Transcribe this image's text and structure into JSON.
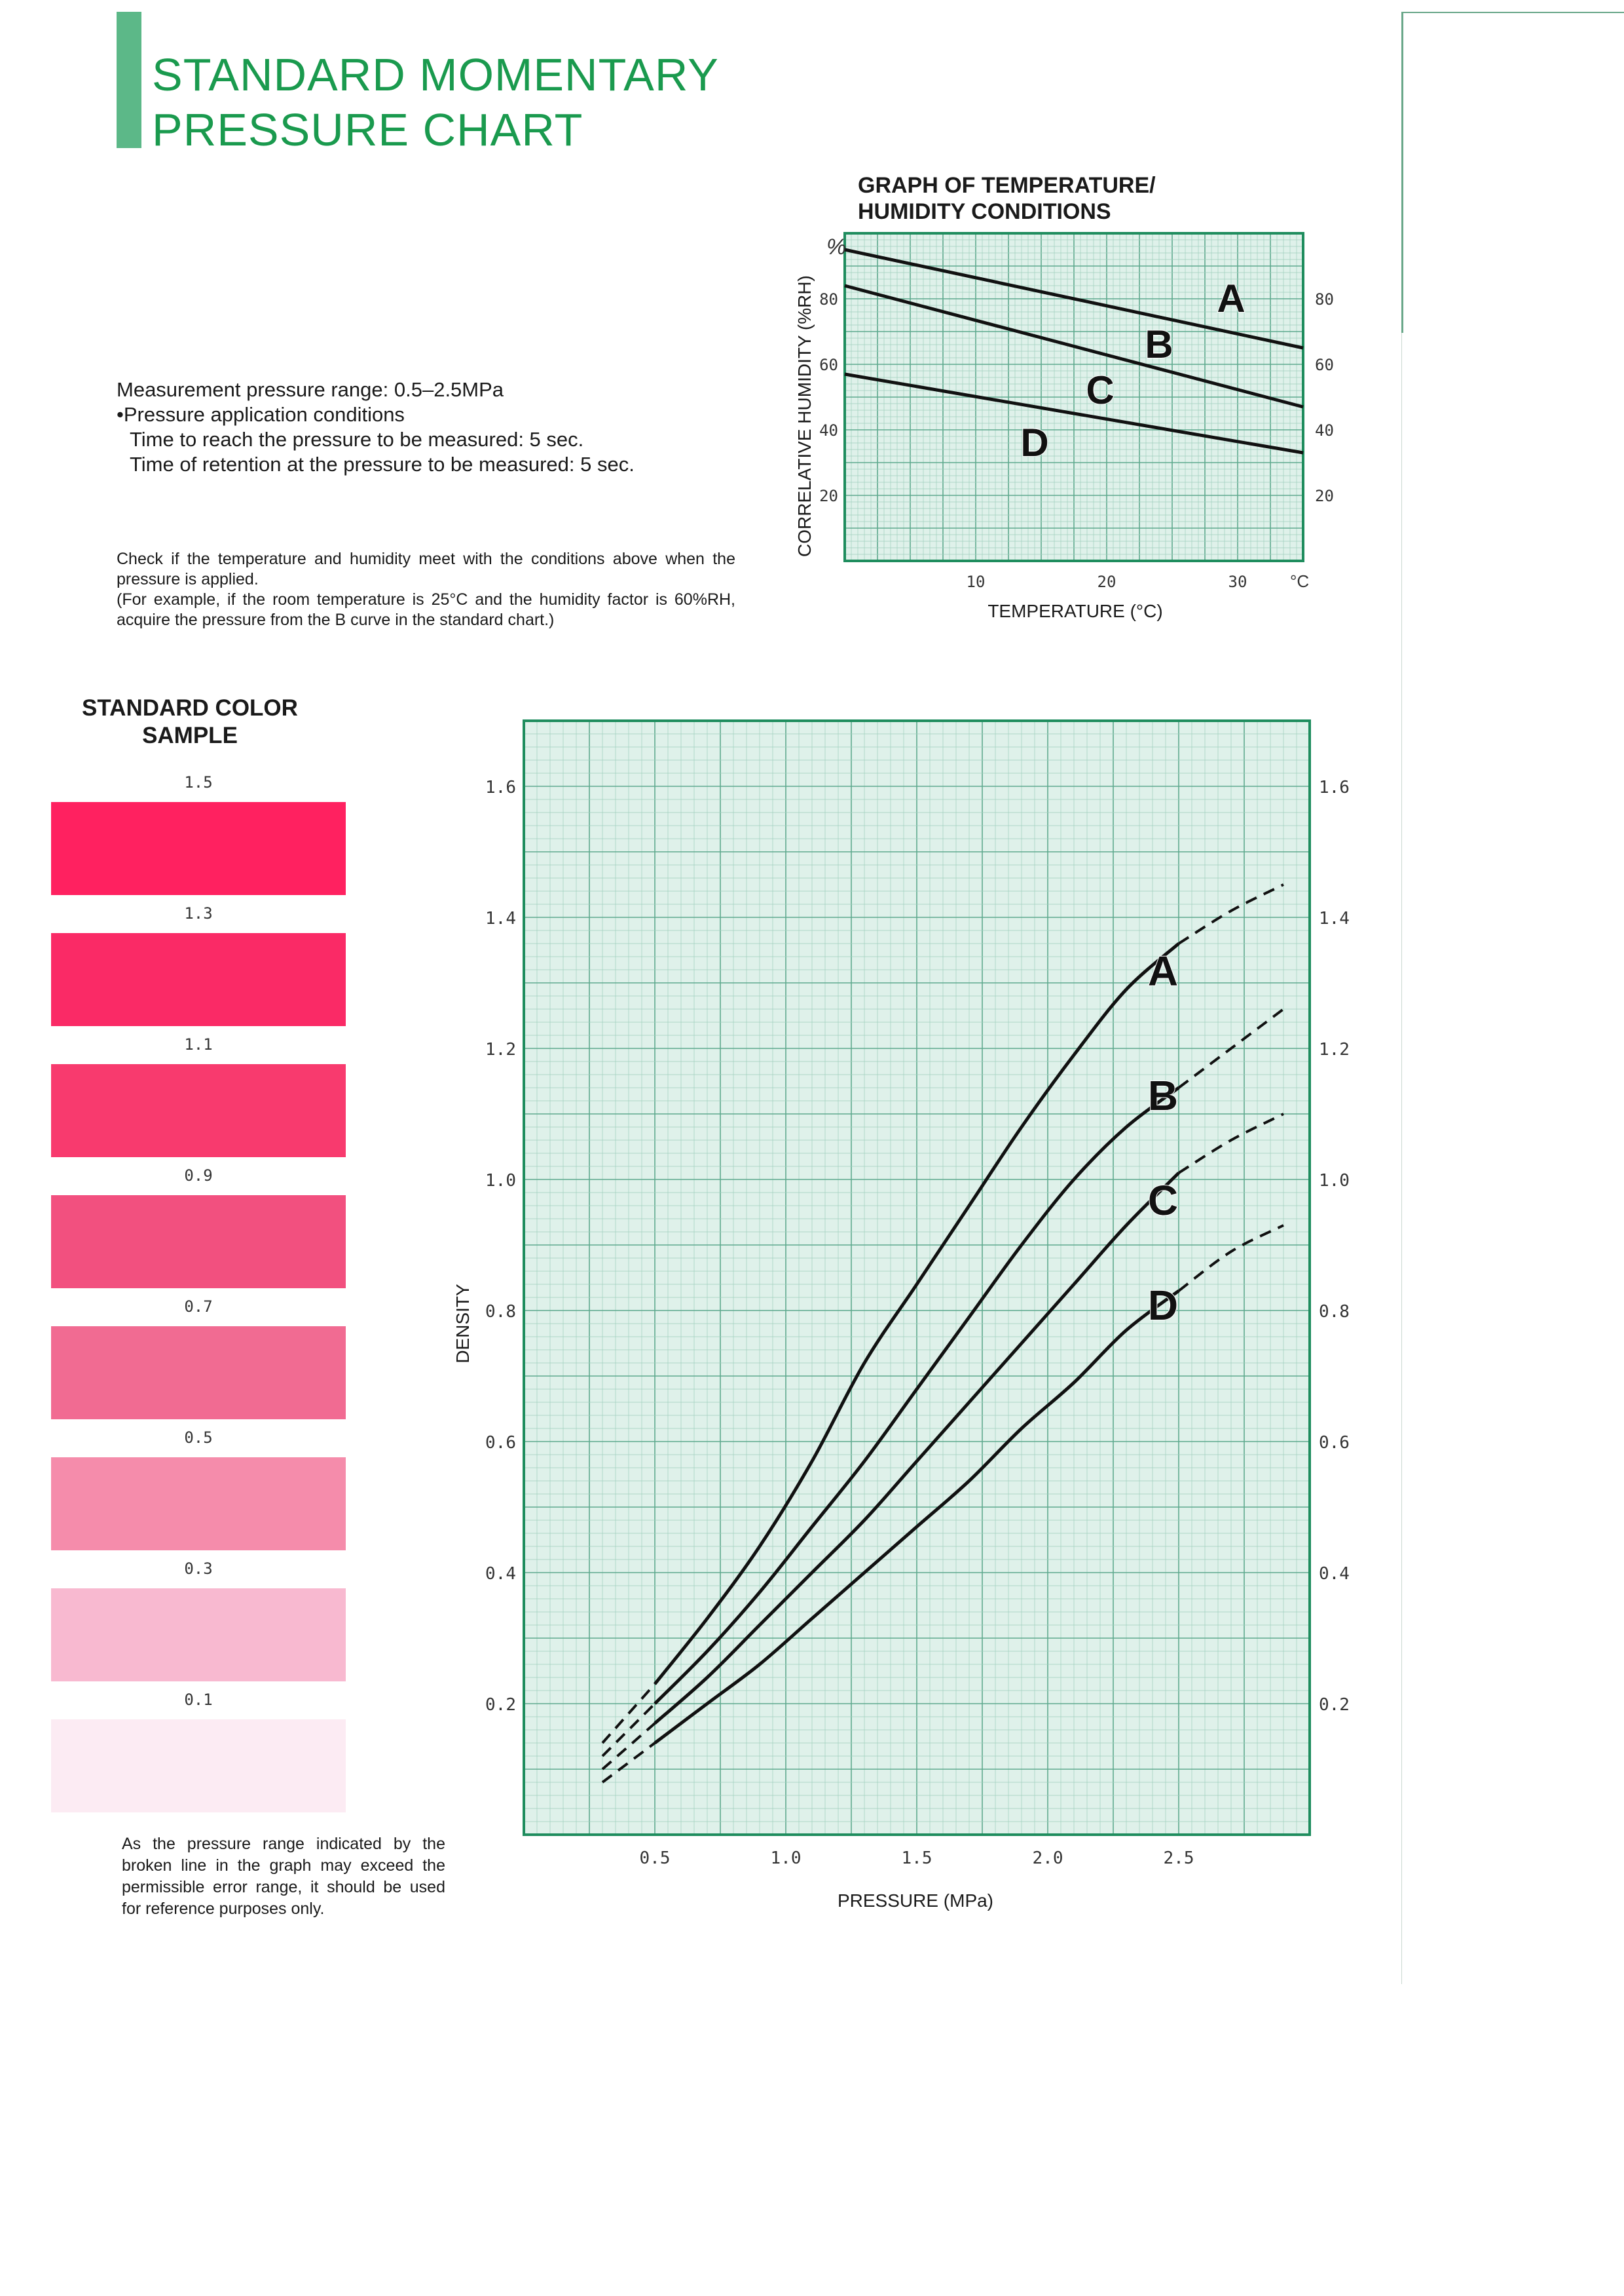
{
  "page": {
    "title_lines": [
      "STANDARD MOMENTARY",
      "PRESSURE CHART"
    ],
    "conditions": {
      "range": "Measurement pressure range: 0.5–2.5MPa",
      "application": "•Pressure application conditions",
      "time_reach": "Time to reach the pressure to be measured: 5 sec.",
      "time_retention": "Time of retention at the pressure to be measured: 5 sec."
    },
    "note_lines": [
      "Check if the temperature and humidity meet with the conditions above when the pressure is applied.",
      "(For example, if the room temperature is 25°C and the humidity factor is 60%RH, acquire the pressure from the B curve in the standard chart.)"
    ],
    "color_sample": {
      "title_lines": [
        "STANDARD COLOR",
        "SAMPLE"
      ],
      "swatches": [
        {
          "label": "1.5",
          "color": "#ff2160"
        },
        {
          "label": "1.3",
          "color": "#fa2a66"
        },
        {
          "label": "1.1",
          "color": "#f83a6e"
        },
        {
          "label": "0.9",
          "color": "#f2507f"
        },
        {
          "label": "0.7",
          "color": "#f16b92"
        },
        {
          "label": "0.5",
          "color": "#f58cab"
        },
        {
          "label": "0.3",
          "color": "#f8b9d0"
        },
        {
          "label": "0.1",
          "color": "#fcebf3"
        }
      ]
    },
    "footnote": "As the pressure range indicated by the broken line in the graph may exceed the permissible error range, it should be used for reference purposes only."
  },
  "colors": {
    "title_green": "#1a9a4e",
    "accent_bar": "#5cb888",
    "grid_bg": "#dff1ea",
    "grid_fine": "#9fcfbd",
    "grid_major": "#5ea98e",
    "frame": "#1f8d5e"
  },
  "chart_data": [
    {
      "type": "line",
      "title_lines": [
        "GRAPH OF TEMPERATURE/",
        "HUMIDITY CONDITIONS"
      ],
      "xlabel": "TEMPERATURE (°C)",
      "ylabel": "CORRELATIVE HUMIDITY (%RH)",
      "y_unit": "%",
      "x_unit": "°C",
      "xlim": [
        0,
        35
      ],
      "ylim": [
        0,
        100
      ],
      "x_ticks": [
        {
          "value": 10,
          "label": "10"
        },
        {
          "value": 20,
          "label": "20"
        },
        {
          "value": 30,
          "label": "30"
        }
      ],
      "y_ticks_left": [
        {
          "value": 20,
          "label": "20"
        },
        {
          "value": 40,
          "label": "40"
        },
        {
          "value": 60,
          "label": "60"
        },
        {
          "value": 80,
          "label": "80"
        }
      ],
      "y_ticks_right": [
        {
          "value": 20,
          "label": "20"
        },
        {
          "value": 40,
          "label": "40"
        },
        {
          "value": 60,
          "label": "60"
        },
        {
          "value": 80,
          "label": "80"
        }
      ],
      "series": [
        {
          "name": "A",
          "x": [
            0,
            35
          ],
          "y": [
            95,
            65
          ],
          "label_at": [
            29.5,
            80
          ]
        },
        {
          "name": "B",
          "x": [
            0,
            35
          ],
          "y": [
            84,
            47
          ],
          "label_at": [
            24,
            66
          ]
        },
        {
          "name": "C",
          "x": [
            0,
            35
          ],
          "y": [
            57,
            33
          ],
          "label_at": [
            19.5,
            52
          ]
        },
        {
          "name": "D",
          "x": [
            0,
            35
          ],
          "y": [
            57,
            33
          ],
          "label_at": [
            14.5,
            36
          ]
        }
      ],
      "grid": true
    },
    {
      "type": "line",
      "xlabel": "PRESSURE (MPa)",
      "ylabel": "DENSITY",
      "xlim": [
        0,
        3
      ],
      "ylim": [
        0,
        1.7
      ],
      "x_ticks": [
        {
          "value": 0.5,
          "label": "0.5"
        },
        {
          "value": 1.0,
          "label": "1.0"
        },
        {
          "value": 1.5,
          "label": "1.5"
        },
        {
          "value": 2.0,
          "label": "2.0"
        },
        {
          "value": 2.5,
          "label": "2.5"
        }
      ],
      "y_ticks_left": [
        {
          "value": 0.2,
          "label": "0.2"
        },
        {
          "value": 0.4,
          "label": "0.4"
        },
        {
          "value": 0.6,
          "label": "0.6"
        },
        {
          "value": 0.8,
          "label": "0.8"
        },
        {
          "value": 1.0,
          "label": "1.0"
        },
        {
          "value": 1.2,
          "label": "1.2"
        },
        {
          "value": 1.4,
          "label": "1.4"
        },
        {
          "value": 1.6,
          "label": "1.6"
        }
      ],
      "y_ticks_right": [
        {
          "value": 0.2,
          "label": "0.2"
        },
        {
          "value": 0.4,
          "label": "0.4"
        },
        {
          "value": 0.6,
          "label": "0.6"
        },
        {
          "value": 0.8,
          "label": "0.8"
        },
        {
          "value": 1.0,
          "label": "1.0"
        },
        {
          "value": 1.2,
          "label": "1.2"
        },
        {
          "value": 1.4,
          "label": "1.4"
        },
        {
          "value": 1.6,
          "label": "1.6"
        }
      ],
      "series": [
        {
          "name": "A",
          "x": [
            0.3,
            0.5,
            0.7,
            0.9,
            1.1,
            1.3,
            1.5,
            1.7,
            1.9,
            2.1,
            2.3,
            2.5,
            2.7,
            2.9
          ],
          "y": [
            0.14,
            0.23,
            0.33,
            0.44,
            0.57,
            0.72,
            0.84,
            0.96,
            1.08,
            1.19,
            1.29,
            1.36,
            1.41,
            1.45
          ],
          "solid_range": [
            0.5,
            2.5
          ],
          "label_at": [
            2.44,
            1.32
          ]
        },
        {
          "name": "B",
          "x": [
            0.3,
            0.5,
            0.7,
            0.9,
            1.1,
            1.3,
            1.5,
            1.7,
            1.9,
            2.1,
            2.3,
            2.5,
            2.7,
            2.9
          ],
          "y": [
            0.12,
            0.2,
            0.28,
            0.37,
            0.47,
            0.57,
            0.68,
            0.79,
            0.9,
            1.0,
            1.08,
            1.14,
            1.2,
            1.26
          ],
          "solid_range": [
            0.5,
            2.5
          ],
          "label_at": [
            2.44,
            1.13
          ]
        },
        {
          "name": "C",
          "x": [
            0.3,
            0.5,
            0.7,
            0.9,
            1.1,
            1.3,
            1.5,
            1.7,
            1.9,
            2.1,
            2.3,
            2.5,
            2.7,
            2.9
          ],
          "y": [
            0.1,
            0.17,
            0.24,
            0.32,
            0.4,
            0.48,
            0.57,
            0.66,
            0.75,
            0.84,
            0.93,
            1.01,
            1.06,
            1.1
          ],
          "solid_range": [
            0.5,
            2.5
          ],
          "label_at": [
            2.44,
            0.97
          ]
        },
        {
          "name": "D",
          "x": [
            0.3,
            0.5,
            0.7,
            0.9,
            1.1,
            1.3,
            1.5,
            1.7,
            1.9,
            2.1,
            2.3,
            2.5,
            2.7,
            2.9
          ],
          "y": [
            0.08,
            0.14,
            0.2,
            0.26,
            0.33,
            0.4,
            0.47,
            0.54,
            0.62,
            0.69,
            0.77,
            0.83,
            0.89,
            0.93
          ],
          "solid_range": [
            0.5,
            2.5
          ],
          "label_at": [
            2.44,
            0.81
          ]
        }
      ],
      "grid": true
    }
  ]
}
